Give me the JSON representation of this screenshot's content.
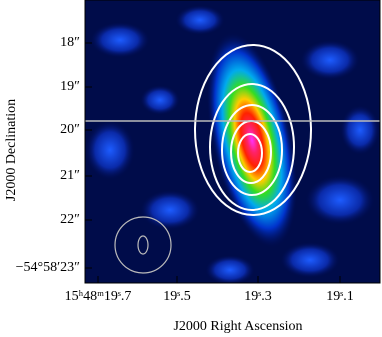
{
  "figure": {
    "x_axis": {
      "label": "J2000 Right Ascension",
      "ticks": [
        "15ʰ48ᵐ19ˢ.7",
        "19ˢ.5",
        "19ˢ.3",
        "19ˢ.1"
      ]
    },
    "y_axis": {
      "label": "J2000 Declination",
      "ticks": [
        "18″",
        "19″",
        "20″",
        "21″",
        "22″",
        "−54°58′23″"
      ]
    }
  }
}
